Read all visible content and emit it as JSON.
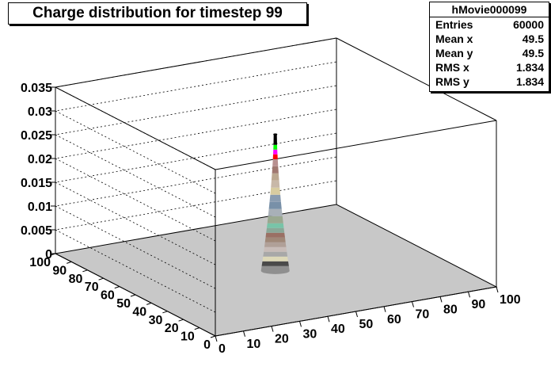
{
  "chart_data": {
    "type": "lego3d",
    "title": "Charge distribution for timestep 99",
    "stats": {
      "name": "hMovie000099",
      "rows": [
        {
          "label": "Entries",
          "value": "60000"
        },
        {
          "label": "Mean x",
          "value": "49.5"
        },
        {
          "label": "Mean y",
          "value": "49.5"
        },
        {
          "label": "RMS x",
          "value": "1.834"
        },
        {
          "label": "RMS y",
          "value": "1.834"
        }
      ]
    },
    "x_ticks": [
      "0",
      "10",
      "20",
      "30",
      "40",
      "50",
      "60",
      "70",
      "80",
      "90",
      "100"
    ],
    "y_ticks": [
      "0",
      "10",
      "20",
      "30",
      "40",
      "50",
      "60",
      "70",
      "80",
      "90",
      "100"
    ],
    "z_ticks": [
      "0",
      "0.005",
      "0.01",
      "0.015",
      "0.02",
      "0.025",
      "0.03",
      "0.035"
    ],
    "xlim": [
      0,
      100
    ],
    "ylim": [
      0,
      100
    ],
    "zlim": [
      0,
      0.035
    ],
    "grid": true,
    "peak": {
      "x": 49.5,
      "y": 49.5,
      "z": 0.0287
    },
    "colors": {
      "floor": "#c8c8c8",
      "background": "#ffffff"
    },
    "bands": [
      {
        "z_low": 0.0,
        "z_high": 0.001,
        "color": "#8f8f8f"
      },
      {
        "z_low": 0.001,
        "z_high": 0.002,
        "color": "#4a4a4a"
      },
      {
        "z_low": 0.002,
        "z_high": 0.003,
        "color": "#ddd8b8"
      },
      {
        "z_low": 0.003,
        "z_high": 0.004,
        "color": "#a8a8a8"
      },
      {
        "z_low": 0.004,
        "z_high": 0.005,
        "color": "#c8bcb8"
      },
      {
        "z_low": 0.005,
        "z_high": 0.006,
        "color": "#b0a098"
      },
      {
        "z_low": 0.006,
        "z_high": 0.007,
        "color": "#a08878"
      },
      {
        "z_low": 0.007,
        "z_high": 0.008,
        "color": "#9a7064"
      },
      {
        "z_low": 0.008,
        "z_high": 0.009,
        "color": "#8aa898"
      },
      {
        "z_low": 0.009,
        "z_high": 0.01,
        "color": "#78c4a8"
      },
      {
        "z_low": 0.01,
        "z_high": 0.0115,
        "color": "#9aa890"
      },
      {
        "z_low": 0.0115,
        "z_high": 0.013,
        "color": "#a8b0b8"
      },
      {
        "z_low": 0.013,
        "z_high": 0.0145,
        "color": "#7890a8"
      },
      {
        "z_low": 0.0145,
        "z_high": 0.016,
        "color": "#8a9cb0"
      },
      {
        "z_low": 0.016,
        "z_high": 0.0175,
        "color": "#d8cca0"
      },
      {
        "z_low": 0.0175,
        "z_high": 0.019,
        "color": "#c8b8a8"
      },
      {
        "z_low": 0.019,
        "z_high": 0.0205,
        "color": "#bca890"
      },
      {
        "z_low": 0.0205,
        "z_high": 0.022,
        "color": "#a07870"
      },
      {
        "z_low": 0.022,
        "z_high": 0.0235,
        "color": "#b89090"
      },
      {
        "z_low": 0.0235,
        "z_high": 0.0245,
        "color": "#ff0000"
      },
      {
        "z_low": 0.0245,
        "z_high": 0.0255,
        "color": "#ff00ff"
      },
      {
        "z_low": 0.0255,
        "z_high": 0.0265,
        "color": "#00ff00"
      },
      {
        "z_low": 0.0265,
        "z_high": 0.0287,
        "color": "#000000"
      }
    ]
  }
}
